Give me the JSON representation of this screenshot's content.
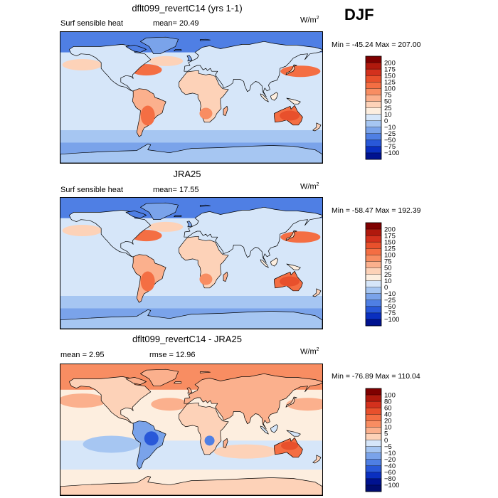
{
  "season": "DJF",
  "panels": [
    {
      "title": "dflt099_revertC14 (yrs 1-1)",
      "left_label": "Surf sensible heat",
      "stat1": "mean=  20.49",
      "stat2": "",
      "units": "W/m",
      "units_sup": "2",
      "minmax": "Min = -45.24 Max = 207.00",
      "colorbar": {
        "levels": [
          "200",
          "175",
          "150",
          "125",
          "100",
          "75",
          "50",
          "25",
          "10",
          "0",
          "-10",
          "-25",
          "-50",
          "-75",
          "-100"
        ],
        "colors": [
          "#7f0000",
          "#b0190d",
          "#d3311d",
          "#e8502c",
          "#f46e43",
          "#f88d62",
          "#fbb08d",
          "#fdd2b8",
          "#fdeedf",
          "#d6e6f9",
          "#a6c6f2",
          "#7aa3ea",
          "#4f7fe4",
          "#2958d8",
          "#0a2fc0",
          "#001290"
        ]
      },
      "palette": "full"
    },
    {
      "title": "JRA25",
      "left_label": "Surf sensible heat",
      "stat1": "mean=  17.55",
      "stat2": "",
      "units": "W/m",
      "units_sup": "2",
      "minmax": "Min = -58.47 Max = 192.39",
      "colorbar": {
        "levels": [
          "200",
          "175",
          "150",
          "125",
          "100",
          "75",
          "50",
          "25",
          "10",
          "0",
          "-10",
          "-25",
          "-50",
          "-75",
          "-100"
        ],
        "colors": [
          "#7f0000",
          "#b0190d",
          "#d3311d",
          "#e8502c",
          "#f46e43",
          "#f88d62",
          "#fbb08d",
          "#fdd2b8",
          "#fdeedf",
          "#d6e6f9",
          "#a6c6f2",
          "#7aa3ea",
          "#4f7fe4",
          "#2958d8",
          "#0a2fc0",
          "#001290"
        ]
      },
      "palette": "full"
    },
    {
      "title": "dflt099_revertC14 - JRA25",
      "left_label": "mean =   2.95",
      "stat1": "",
      "stat2": "rmse =  12.96",
      "units": "W/m",
      "units_sup": "2",
      "minmax": "Min = -76.89 Max = 110.04",
      "colorbar": {
        "levels": [
          "100",
          "80",
          "60",
          "40",
          "20",
          "10",
          "5",
          "0",
          "-5",
          "-10",
          "-20",
          "-40",
          "-60",
          "-80",
          "-100"
        ],
        "colors": [
          "#7f0000",
          "#b0190d",
          "#d3311d",
          "#e8502c",
          "#f46e43",
          "#f88d62",
          "#fbb08d",
          "#fdd2b8",
          "#d6e6f9",
          "#a6c6f2",
          "#7aa3ea",
          "#4f7fe4",
          "#2958d8",
          "#0a2fc0",
          "#001290",
          "#000c70"
        ]
      },
      "palette": "diff"
    }
  ],
  "chart_data": {
    "type": "heatmap",
    "title": "DJF",
    "variable": "Surf sensible heat",
    "units": "W/m2",
    "panels": [
      {
        "name": "dflt099_revertC14 (yrs 1-1)",
        "mean": 20.49,
        "min": -45.24,
        "max": 207.0
      },
      {
        "name": "JRA25",
        "mean": 17.55,
        "min": -58.47,
        "max": 192.39
      },
      {
        "name": "dflt099_revertC14 - JRA25",
        "mean": 2.95,
        "rmse": 12.96,
        "min": -76.89,
        "max": 110.04
      }
    ]
  }
}
